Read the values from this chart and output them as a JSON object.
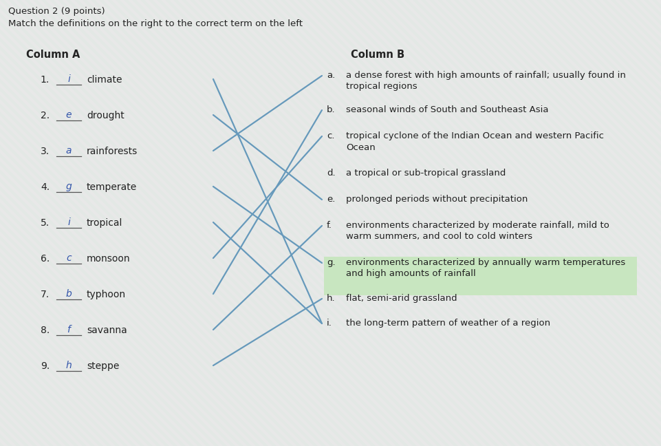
{
  "title_question": "Question 2 (9 points)",
  "subtitle": "Match the definitions on the right to the correct term on the left",
  "col_a_header": "Column A",
  "col_b_header": "Column B",
  "col_a_items": [
    {
      "num": "1.",
      "answer": "i",
      "term": "climate"
    },
    {
      "num": "2.",
      "answer": "e",
      "term": "drought"
    },
    {
      "num": "3.",
      "answer": "a",
      "term": "rainforests"
    },
    {
      "num": "4.",
      "answer": "g",
      "term": "temperate"
    },
    {
      "num": "5.",
      "answer": "i",
      "term": "tropical"
    },
    {
      "num": "6.",
      "answer": "c",
      "term": "monsoon"
    },
    {
      "num": "7.",
      "answer": "b",
      "term": "typhoon"
    },
    {
      "num": "8.",
      "answer": "f",
      "term": "savanna"
    },
    {
      "num": "9.",
      "answer": "h",
      "term": "steppe"
    }
  ],
  "col_b_items": [
    {
      "letter": "a.",
      "text": "a dense forest with high amounts of rainfall; usually found in\ntropical regions"
    },
    {
      "letter": "b.",
      "text": "seasonal winds of South and Southeast Asia"
    },
    {
      "letter": "c.",
      "text": "tropical cyclone of the Indian Ocean and western Pacific\nOcean"
    },
    {
      "letter": "d.",
      "text": "a tropical or sub-tropical grassland"
    },
    {
      "letter": "e.",
      "text": "prolonged periods without precipitation"
    },
    {
      "letter": "f.",
      "text": "environments characterized by moderate rainfall, mild to\nwarm summers, and cool to cold winters"
    },
    {
      "letter": "g.",
      "text": "environments characterized by annually warm temperatures\nand high amounts of rainfall",
      "highlight": true
    },
    {
      "letter": "h.",
      "text": "flat, semi-arid grassland"
    },
    {
      "letter": "i.",
      "text": "the long-term pattern of weather of a region"
    }
  ],
  "lines": [
    {
      "from_row": 0,
      "to_letter": "i"
    },
    {
      "from_row": 1,
      "to_letter": "e"
    },
    {
      "from_row": 2,
      "to_letter": "a"
    },
    {
      "from_row": 3,
      "to_letter": "g"
    },
    {
      "from_row": 4,
      "to_letter": "i"
    },
    {
      "from_row": 5,
      "to_letter": "c"
    },
    {
      "from_row": 6,
      "to_letter": "b"
    },
    {
      "from_row": 7,
      "to_letter": "f"
    },
    {
      "from_row": 8,
      "to_letter": "h"
    }
  ],
  "bg_color": "#e8e8e8",
  "highlight_color": "#c8e6c0",
  "line_color": "#6699bb",
  "text_color": "#222222",
  "answer_color": "#3355aa",
  "col_b_spacings": [
    50,
    38,
    54,
    38,
    38,
    54,
    52,
    36,
    36
  ]
}
